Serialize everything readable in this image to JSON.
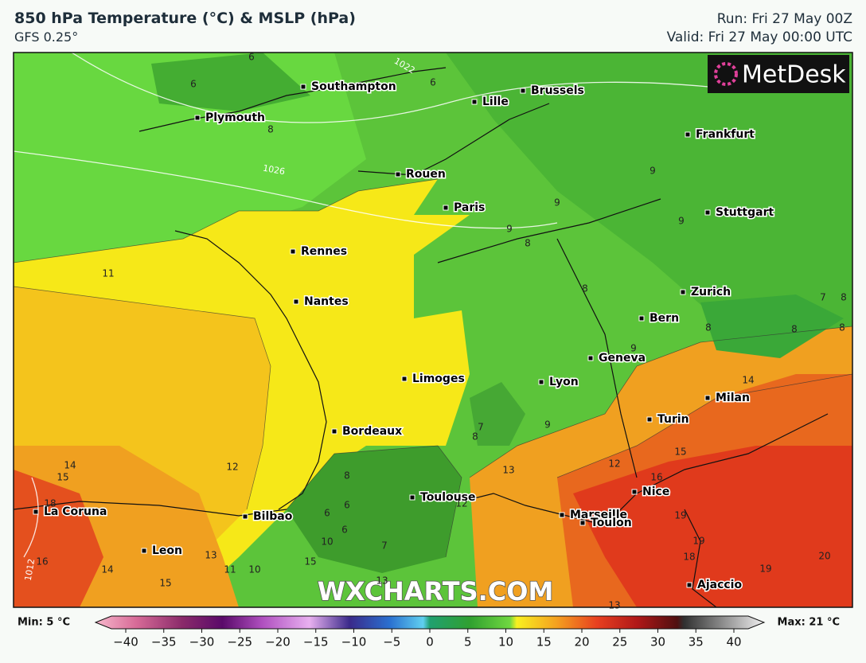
{
  "header": {
    "title": "850 hPa Temperature (°C) & MSLP (hPa)",
    "subtitle": "GFS 0.25°",
    "run": "Run: Fri 27 May 00Z",
    "valid": "Valid: Fri 27 May 00:00 UTC"
  },
  "logo": "MetDesk",
  "watermark": "WXCHARTS.COM",
  "cities": [
    "Southampton",
    "Lille",
    "Brussels",
    "Plymouth",
    "Frankfurt",
    "Rouen",
    "Paris",
    "Stuttgart",
    "Rennes",
    "Nantes",
    "Zurich",
    "Bern",
    "Geneva",
    "Limoges",
    "Lyon",
    "Milan",
    "Turin",
    "Bordeaux",
    "Toulouse",
    "Nice",
    "La Coruna",
    "Bilbao",
    "Marseille",
    "Toulon",
    "Leon",
    "Ajaccio"
  ],
  "isotherm_labels": [
    6,
    6,
    6,
    8,
    9,
    9,
    9,
    8,
    8,
    9,
    11,
    8,
    8,
    9,
    8,
    7,
    8,
    9,
    14,
    12,
    13,
    12,
    14,
    15,
    18,
    16,
    14,
    15,
    13,
    11,
    10,
    10,
    15,
    8,
    6,
    6,
    7,
    6,
    12,
    13,
    16,
    15,
    19,
    19,
    18,
    19,
    20,
    13,
    7,
    8
  ],
  "isobar_labels": [
    "1022",
    "1026",
    "1012"
  ],
  "colorbar": {
    "min_label": "Min: 5 °C",
    "max_label": "Max: 21 °C",
    "ticks": [
      {
        "value": -40,
        "label": "−40"
      },
      {
        "value": -35,
        "label": "−35"
      },
      {
        "value": -30,
        "label": "−30"
      },
      {
        "value": -25,
        "label": "−25"
      },
      {
        "value": -20,
        "label": "−20"
      },
      {
        "value": -15,
        "label": "−15"
      },
      {
        "value": -10,
        "label": "−10"
      },
      {
        "value": -5,
        "label": "−5"
      },
      0,
      5,
      10,
      15,
      20,
      25,
      30,
      35,
      40
    ],
    "lim": [
      -40,
      40
    ]
  }
}
